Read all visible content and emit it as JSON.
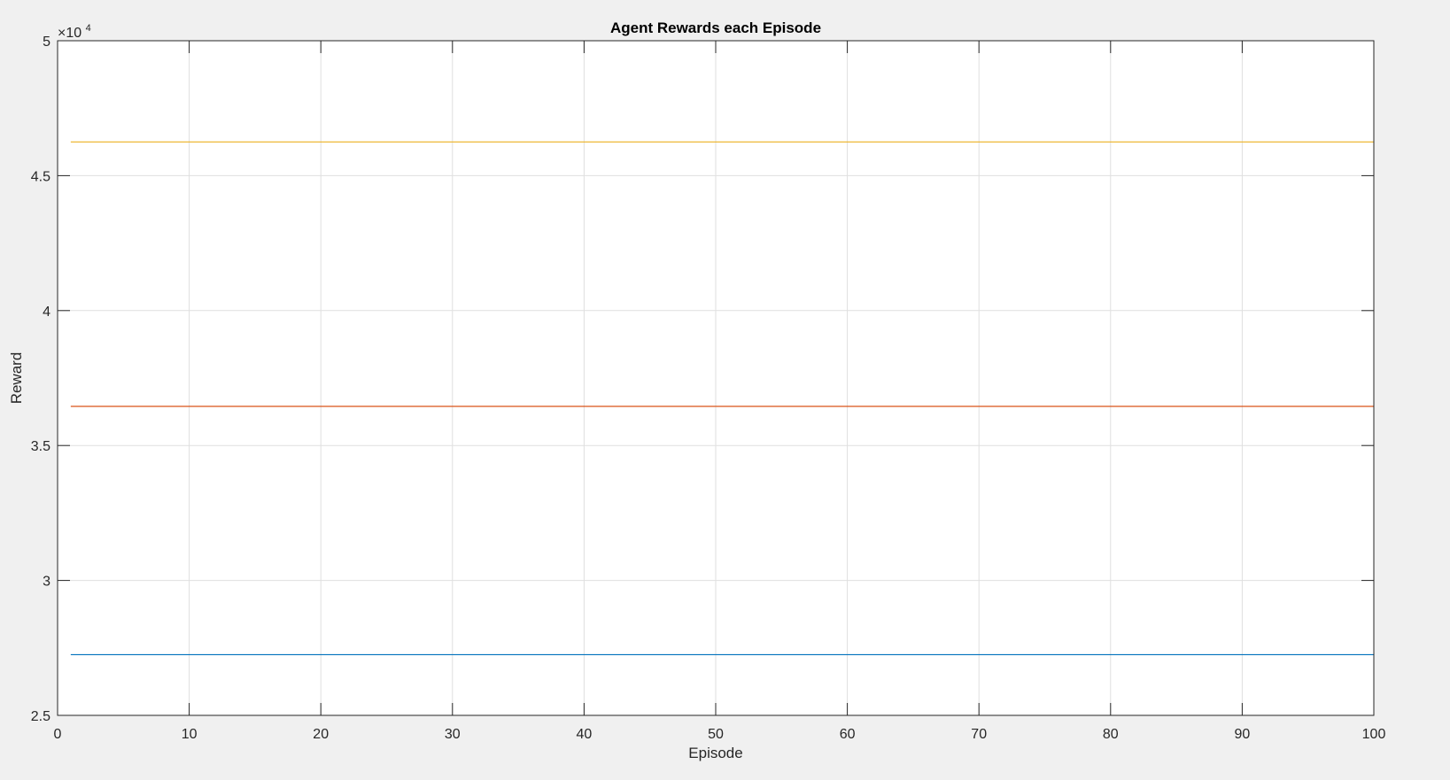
{
  "chart_data": {
    "type": "line",
    "title": "Agent Rewards each Episode",
    "xlabel": "Episode",
    "ylabel": "Reward",
    "xlim": [
      0,
      100
    ],
    "ylim": [
      25000,
      50000
    ],
    "x_ticks": [
      0,
      10,
      20,
      30,
      40,
      50,
      60,
      70,
      80,
      90,
      100
    ],
    "y_ticks": [
      25000,
      30000,
      35000,
      40000,
      45000,
      50000
    ],
    "x_tick_labels": [
      "0",
      "10",
      "20",
      "30",
      "40",
      "50",
      "60",
      "70",
      "80",
      "90",
      "100"
    ],
    "y_tick_labels": [
      "2.5",
      "3",
      "3.5",
      "4",
      "4.5",
      "5"
    ],
    "y_exponent_base": "×10",
    "y_exponent_power": "4",
    "grid": true,
    "x": [
      1,
      100
    ],
    "series": [
      {
        "values": [
          27250,
          27250
        ],
        "color": "#0072BD"
      },
      {
        "values": [
          36450,
          36450
        ],
        "color": "#D95319"
      },
      {
        "values": [
          46250,
          46250
        ],
        "color": "#EDB120"
      }
    ],
    "colors": {
      "figure_background": "#f0f0f0",
      "axes_background": "#ffffff",
      "grid": "#dfdfdf",
      "axis": "#262626"
    }
  }
}
